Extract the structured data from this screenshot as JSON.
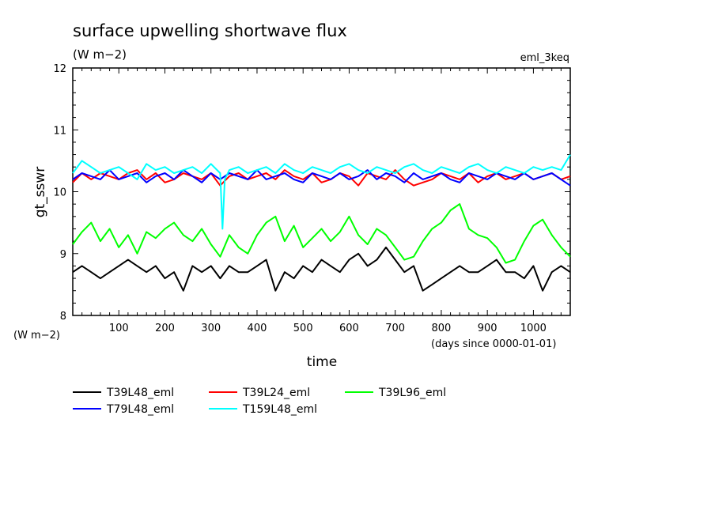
{
  "chart_data": {
    "type": "line",
    "title": "surface upwelling shortwave flux",
    "units": "(W m−2)",
    "experiment": "eml_3keq",
    "xlabel": "time",
    "x_units": "(days since 0000-01-01)",
    "ylabel": "gt_sswr",
    "y_units": "(W m−2)",
    "xlim": [
      0,
      1080
    ],
    "ylim": [
      8,
      12
    ],
    "x_ticks": [
      100,
      200,
      300,
      400,
      500,
      600,
      700,
      800,
      900,
      1000
    ],
    "y_ticks": [
      8,
      9,
      10,
      11,
      12
    ],
    "series": [
      {
        "name": "T39L48_eml",
        "color": "#000000",
        "x": [
          0,
          20,
          40,
          60,
          80,
          100,
          120,
          140,
          160,
          180,
          200,
          220,
          240,
          260,
          280,
          300,
          320,
          340,
          360,
          380,
          400,
          420,
          440,
          460,
          480,
          500,
          520,
          540,
          560,
          580,
          600,
          620,
          640,
          660,
          680,
          700,
          720,
          740,
          760,
          780,
          800,
          820,
          840,
          860,
          880,
          900,
          920,
          940,
          960,
          980,
          1000,
          1020,
          1040,
          1060,
          1080
        ],
        "y": [
          8.7,
          8.8,
          8.7,
          8.6,
          8.7,
          8.8,
          8.9,
          8.8,
          8.7,
          8.8,
          8.6,
          8.7,
          8.4,
          8.8,
          8.7,
          8.8,
          8.6,
          8.8,
          8.7,
          8.7,
          8.8,
          8.9,
          8.4,
          8.7,
          8.6,
          8.8,
          8.7,
          8.9,
          8.8,
          8.7,
          8.9,
          9.0,
          8.8,
          8.9,
          9.1,
          8.9,
          8.7,
          8.8,
          8.4,
          8.5,
          8.6,
          8.7,
          8.8,
          8.7,
          8.7,
          8.8,
          8.9,
          8.7,
          8.7,
          8.6,
          8.8,
          8.4,
          8.7,
          8.8,
          8.7
        ]
      },
      {
        "name": "T39L24_eml",
        "color": "#ff0000",
        "x": [
          0,
          20,
          40,
          60,
          80,
          100,
          120,
          140,
          160,
          180,
          200,
          220,
          240,
          260,
          280,
          300,
          320,
          340,
          360,
          380,
          400,
          420,
          440,
          460,
          480,
          500,
          520,
          540,
          560,
          580,
          600,
          620,
          640,
          660,
          680,
          700,
          720,
          740,
          760,
          780,
          800,
          820,
          840,
          860,
          880,
          900,
          920,
          940,
          960,
          980,
          1000,
          1020,
          1040,
          1060,
          1080
        ],
        "y": [
          10.15,
          10.3,
          10.2,
          10.3,
          10.25,
          10.2,
          10.3,
          10.35,
          10.2,
          10.3,
          10.15,
          10.2,
          10.3,
          10.25,
          10.2,
          10.3,
          10.1,
          10.25,
          10.3,
          10.2,
          10.25,
          10.3,
          10.2,
          10.35,
          10.25,
          10.2,
          10.3,
          10.15,
          10.2,
          10.3,
          10.25,
          10.1,
          10.3,
          10.25,
          10.2,
          10.35,
          10.2,
          10.1,
          10.15,
          10.2,
          10.3,
          10.25,
          10.2,
          10.3,
          10.15,
          10.25,
          10.3,
          10.2,
          10.25,
          10.3,
          10.2,
          10.25,
          10.3,
          10.2,
          10.25
        ]
      },
      {
        "name": "T39L96_eml",
        "color": "#00ff00",
        "x": [
          0,
          20,
          40,
          60,
          80,
          100,
          120,
          140,
          160,
          180,
          200,
          220,
          240,
          260,
          280,
          300,
          320,
          340,
          360,
          380,
          400,
          420,
          440,
          460,
          480,
          500,
          520,
          540,
          560,
          580,
          600,
          620,
          640,
          660,
          680,
          700,
          720,
          740,
          760,
          780,
          800,
          820,
          840,
          860,
          880,
          900,
          920,
          940,
          960,
          980,
          1000,
          1020,
          1040,
          1060,
          1080
        ],
        "y": [
          9.15,
          9.35,
          9.5,
          9.2,
          9.4,
          9.1,
          9.3,
          9.0,
          9.35,
          9.25,
          9.4,
          9.5,
          9.3,
          9.2,
          9.4,
          9.15,
          8.95,
          9.3,
          9.1,
          9.0,
          9.3,
          9.5,
          9.6,
          9.2,
          9.45,
          9.1,
          9.25,
          9.4,
          9.2,
          9.35,
          9.6,
          9.3,
          9.15,
          9.4,
          9.3,
          9.1,
          8.9,
          8.95,
          9.2,
          9.4,
          9.5,
          9.7,
          9.8,
          9.4,
          9.3,
          9.25,
          9.1,
          8.85,
          8.9,
          9.2,
          9.45,
          9.55,
          9.3,
          9.1,
          8.95
        ]
      },
      {
        "name": "T79L48_eml",
        "color": "#0000ff",
        "x": [
          0,
          20,
          40,
          60,
          80,
          100,
          120,
          140,
          160,
          180,
          200,
          220,
          240,
          260,
          280,
          300,
          320,
          340,
          360,
          380,
          400,
          420,
          440,
          460,
          480,
          500,
          520,
          540,
          560,
          580,
          600,
          620,
          640,
          660,
          680,
          700,
          720,
          740,
          760,
          780,
          800,
          820,
          840,
          860,
          880,
          900,
          920,
          940,
          960,
          980,
          1000,
          1020,
          1040,
          1060,
          1080
        ],
        "y": [
          10.2,
          10.3,
          10.25,
          10.2,
          10.35,
          10.2,
          10.25,
          10.3,
          10.15,
          10.25,
          10.3,
          10.2,
          10.35,
          10.25,
          10.15,
          10.3,
          10.2,
          10.3,
          10.25,
          10.2,
          10.35,
          10.2,
          10.25,
          10.3,
          10.2,
          10.15,
          10.3,
          10.25,
          10.2,
          10.3,
          10.2,
          10.25,
          10.35,
          10.2,
          10.3,
          10.25,
          10.15,
          10.3,
          10.2,
          10.25,
          10.3,
          10.2,
          10.15,
          10.3,
          10.25,
          10.2,
          10.3,
          10.25,
          10.2,
          10.3,
          10.2,
          10.25,
          10.3,
          10.2,
          10.1
        ]
      },
      {
        "name": "T159L48_eml",
        "color": "#00ffff",
        "x": [
          0,
          20,
          40,
          60,
          80,
          100,
          120,
          140,
          160,
          180,
          200,
          220,
          240,
          260,
          280,
          300,
          320,
          325,
          330,
          340,
          360,
          380,
          400,
          420,
          440,
          460,
          480,
          500,
          520,
          540,
          560,
          580,
          600,
          620,
          640,
          660,
          680,
          700,
          720,
          740,
          760,
          780,
          800,
          820,
          840,
          860,
          880,
          900,
          920,
          940,
          960,
          980,
          1000,
          1020,
          1040,
          1060,
          1080
        ],
        "y": [
          10.3,
          10.5,
          10.4,
          10.3,
          10.35,
          10.4,
          10.3,
          10.2,
          10.45,
          10.35,
          10.4,
          10.3,
          10.35,
          10.4,
          10.3,
          10.45,
          10.3,
          9.4,
          10.2,
          10.35,
          10.4,
          10.3,
          10.35,
          10.4,
          10.3,
          10.45,
          10.35,
          10.3,
          10.4,
          10.35,
          10.3,
          10.4,
          10.45,
          10.35,
          10.3,
          10.4,
          10.35,
          10.3,
          10.4,
          10.45,
          10.35,
          10.3,
          10.4,
          10.35,
          10.3,
          10.4,
          10.45,
          10.35,
          10.3,
          10.4,
          10.35,
          10.3,
          10.4,
          10.35,
          10.4,
          10.35,
          10.6
        ]
      }
    ],
    "legend_placement": "below"
  }
}
